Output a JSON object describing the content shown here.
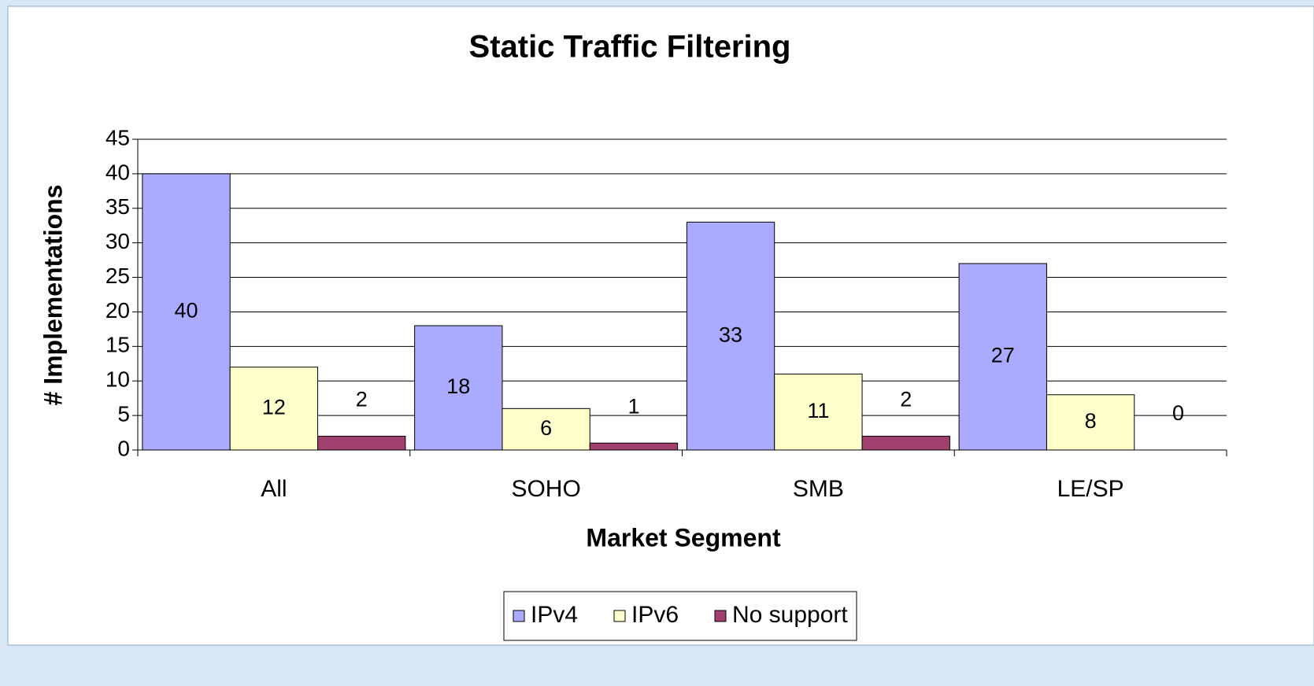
{
  "chart_data": {
    "type": "bar",
    "title": "Static Traffic Filtering",
    "xlabel": "Market Segment",
    "ylabel": "# Implementations",
    "categories": [
      "All",
      "SOHO",
      "SMB",
      "LE/SP"
    ],
    "series": [
      {
        "name": "IPv4",
        "color": "#aaaaff",
        "values": [
          40,
          18,
          33,
          27
        ]
      },
      {
        "name": "IPv6",
        "color": "#ffffcc",
        "values": [
          12,
          6,
          11,
          8
        ]
      },
      {
        "name": "No support",
        "color": "#a0406e",
        "values": [
          2,
          1,
          2,
          0
        ]
      }
    ],
    "ylim": [
      0,
      45
    ],
    "yticks": [
      0,
      5,
      10,
      15,
      20,
      25,
      30,
      35,
      40,
      45
    ],
    "grid": true,
    "data_labels": true,
    "legend": "bottom"
  }
}
